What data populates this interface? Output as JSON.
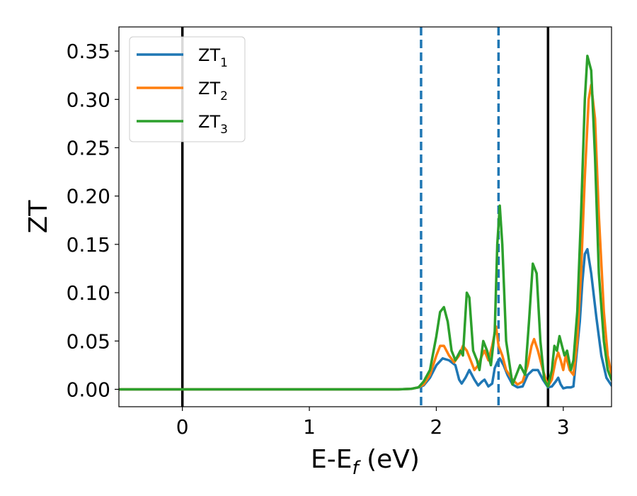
{
  "chart_data": {
    "type": "line",
    "xlabel": "E-E",
    "xlabel_sub": "f",
    "xlabel_unit": " (eV)",
    "ylabel": "ZT",
    "xlim": [
      -0.5,
      3.38
    ],
    "ylim": [
      -0.018,
      0.375
    ],
    "xticks": [
      0,
      1,
      2,
      3
    ],
    "xtick_labels": [
      "0",
      "1",
      "2",
      "3"
    ],
    "yticks": [
      0.0,
      0.05,
      0.1,
      0.15,
      0.2,
      0.25,
      0.3,
      0.35
    ],
    "ytick_labels": [
      "0.00",
      "0.05",
      "0.10",
      "0.15",
      "0.20",
      "0.25",
      "0.30",
      "0.35"
    ],
    "grid": false,
    "legend_position": "top-left",
    "vlines": [
      {
        "x": 0.0,
        "style": "solid",
        "color": "#000000"
      },
      {
        "x": 2.88,
        "style": "solid",
        "color": "#000000"
      },
      {
        "x": 1.88,
        "style": "dashed",
        "color": "#1f77b4"
      },
      {
        "x": 2.49,
        "style": "dashed",
        "color": "#1f77b4"
      }
    ],
    "series": [
      {
        "name": "ZT",
        "subscript": "1",
        "color": "#1f77b4",
        "x": [
          -0.5,
          1.7,
          1.8,
          1.86,
          1.9,
          1.95,
          2.0,
          2.05,
          2.1,
          2.15,
          2.18,
          2.2,
          2.23,
          2.26,
          2.3,
          2.33,
          2.36,
          2.38,
          2.41,
          2.44,
          2.46,
          2.48,
          2.5,
          2.53,
          2.56,
          2.6,
          2.64,
          2.68,
          2.72,
          2.76,
          2.8,
          2.84,
          2.88,
          2.91,
          2.94,
          2.96,
          2.98,
          3.0,
          3.03,
          3.06,
          3.08,
          3.1,
          3.13,
          3.15,
          3.17,
          3.19,
          3.22,
          3.26,
          3.3,
          3.34,
          3.38
        ],
        "y": [
          0.0,
          0.0,
          0.0005,
          0.002,
          0.004,
          0.012,
          0.025,
          0.032,
          0.03,
          0.025,
          0.01,
          0.006,
          0.012,
          0.02,
          0.01,
          0.004,
          0.008,
          0.01,
          0.003,
          0.006,
          0.022,
          0.028,
          0.032,
          0.025,
          0.015,
          0.005,
          0.002,
          0.003,
          0.015,
          0.02,
          0.02,
          0.01,
          0.002,
          0.003,
          0.008,
          0.012,
          0.005,
          0.001,
          0.002,
          0.002,
          0.003,
          0.03,
          0.07,
          0.11,
          0.14,
          0.145,
          0.12,
          0.075,
          0.035,
          0.012,
          0.004
        ]
      },
      {
        "name": "ZT",
        "subscript": "2",
        "color": "#ff7f0e",
        "x": [
          -0.5,
          1.7,
          1.8,
          1.86,
          1.9,
          1.95,
          2.0,
          2.03,
          2.06,
          2.1,
          2.14,
          2.18,
          2.21,
          2.24,
          2.27,
          2.3,
          2.33,
          2.36,
          2.38,
          2.41,
          2.44,
          2.47,
          2.49,
          2.52,
          2.55,
          2.6,
          2.64,
          2.68,
          2.72,
          2.75,
          2.77,
          2.8,
          2.84,
          2.88,
          2.91,
          2.94,
          2.96,
          2.98,
          3.0,
          3.02,
          3.05,
          3.08,
          3.11,
          3.14,
          3.17,
          3.2,
          3.22,
          3.25,
          3.28,
          3.32,
          3.35,
          3.38
        ],
        "y": [
          0.0,
          0.0,
          0.0005,
          0.002,
          0.005,
          0.015,
          0.035,
          0.045,
          0.045,
          0.035,
          0.028,
          0.035,
          0.045,
          0.04,
          0.03,
          0.02,
          0.025,
          0.035,
          0.04,
          0.03,
          0.045,
          0.065,
          0.045,
          0.035,
          0.02,
          0.01,
          0.005,
          0.008,
          0.025,
          0.045,
          0.052,
          0.04,
          0.02,
          0.003,
          0.01,
          0.03,
          0.038,
          0.03,
          0.02,
          0.035,
          0.02,
          0.015,
          0.05,
          0.12,
          0.22,
          0.3,
          0.315,
          0.28,
          0.18,
          0.08,
          0.035,
          0.015
        ]
      },
      {
        "name": "ZT",
        "subscript": "3",
        "color": "#2ca02c",
        "x": [
          -0.5,
          1.7,
          1.8,
          1.86,
          1.9,
          1.95,
          2.0,
          2.03,
          2.06,
          2.09,
          2.12,
          2.15,
          2.19,
          2.21,
          2.24,
          2.26,
          2.29,
          2.32,
          2.34,
          2.37,
          2.4,
          2.43,
          2.46,
          2.48,
          2.5,
          2.52,
          2.55,
          2.6,
          2.63,
          2.66,
          2.7,
          2.73,
          2.76,
          2.79,
          2.82,
          2.85,
          2.88,
          2.91,
          2.93,
          2.95,
          2.97,
          2.99,
          3.01,
          3.03,
          3.06,
          3.08,
          3.11,
          3.14,
          3.17,
          3.19,
          3.22,
          3.25,
          3.28,
          3.32,
          3.35,
          3.38
        ],
        "y": [
          0.0,
          0.0,
          0.0005,
          0.002,
          0.008,
          0.02,
          0.055,
          0.08,
          0.085,
          0.07,
          0.04,
          0.03,
          0.04,
          0.035,
          0.1,
          0.095,
          0.04,
          0.03,
          0.02,
          0.05,
          0.04,
          0.025,
          0.06,
          0.15,
          0.19,
          0.15,
          0.05,
          0.005,
          0.015,
          0.025,
          0.015,
          0.07,
          0.13,
          0.12,
          0.05,
          0.01,
          0.003,
          0.02,
          0.045,
          0.04,
          0.055,
          0.045,
          0.035,
          0.04,
          0.02,
          0.03,
          0.08,
          0.18,
          0.3,
          0.345,
          0.33,
          0.24,
          0.12,
          0.05,
          0.02,
          0.01
        ]
      }
    ]
  }
}
